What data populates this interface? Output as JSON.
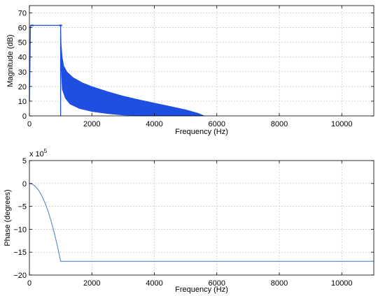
{
  "chart_data": [
    {
      "type": "area",
      "xlabel": "Frequency (Hz)",
      "ylabel": "Magnitude (dB)",
      "xlim": [
        0,
        11025
      ],
      "ylim": [
        0,
        75
      ],
      "xticks": [
        "0",
        "2000",
        "4000",
        "6000",
        "8000",
        "10000"
      ],
      "yticks": [
        "0",
        "10",
        "20",
        "30",
        "40",
        "50",
        "60",
        "70"
      ],
      "grid": true,
      "line_color": "#1f4fe0",
      "passband": {
        "x": [
          0,
          1000
        ],
        "level": 61.5
      },
      "upper_envelope": [
        [
          1000,
          61.5
        ],
        [
          1020,
          48
        ],
        [
          1050,
          40
        ],
        [
          1100,
          34
        ],
        [
          1200,
          30
        ],
        [
          1400,
          26
        ],
        [
          1700,
          22.5
        ],
        [
          2000,
          20
        ],
        [
          2500,
          16.5
        ],
        [
          3000,
          13.5
        ],
        [
          3500,
          11
        ],
        [
          4000,
          8.8
        ],
        [
          4500,
          6.5
        ],
        [
          5000,
          4.2
        ],
        [
          5400,
          1.8
        ],
        [
          5600,
          0
        ]
      ],
      "lower_envelope": [
        [
          1000,
          61.5
        ],
        [
          1010,
          34
        ],
        [
          1050,
          18
        ],
        [
          1150,
          12
        ],
        [
          1300,
          8
        ],
        [
          1600,
          5
        ],
        [
          2000,
          3
        ],
        [
          2500,
          1.5
        ],
        [
          3000,
          0.5
        ],
        [
          3500,
          0
        ],
        [
          5600,
          0
        ]
      ]
    },
    {
      "type": "line",
      "xlabel": "Frequency (Hz)",
      "ylabel": "Phase (degrees)",
      "multiplier": "x 10",
      "multiplier_exp": "5",
      "xlim": [
        0,
        11025
      ],
      "ylim": [
        -20,
        5
      ],
      "xticks": [
        "0",
        "2000",
        "4000",
        "6000",
        "8000",
        "10000"
      ],
      "yticks": [
        "5",
        "0",
        "−5",
        "−10",
        "−15",
        "−20"
      ],
      "grid": true,
      "line_color": "#5a82d6",
      "x": [
        0,
        100,
        200,
        300,
        400,
        500,
        600,
        700,
        800,
        900,
        1000,
        11025
      ],
      "y": [
        0,
        -0.17,
        -0.68,
        -1.53,
        -2.72,
        -4.25,
        -6.12,
        -8.33,
        -10.88,
        -13.77,
        -17.0,
        -17.0
      ]
    }
  ]
}
